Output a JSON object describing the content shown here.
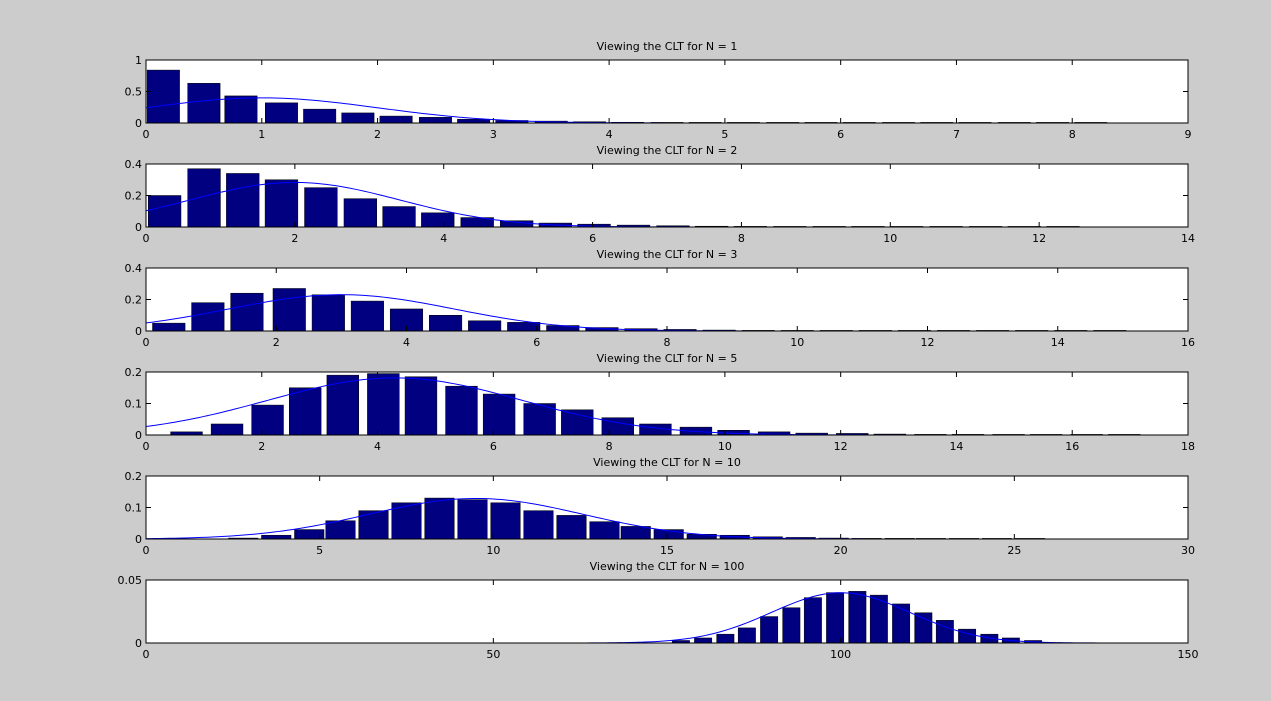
{
  "figure": {
    "background": "#cccccc",
    "bar_color": "#000080",
    "curve_color": "#0000ff"
  },
  "chart_data": [
    {
      "type": "bar",
      "title": "Viewing the CLT for N = 1",
      "xlabel": "",
      "ylabel": "",
      "xlim": [
        0,
        9
      ],
      "ylim": [
        0,
        1
      ],
      "xticks": [
        0,
        1,
        2,
        3,
        4,
        5,
        6,
        7,
        8,
        9
      ],
      "yticks": [
        0,
        0.5,
        1
      ],
      "grid": false,
      "bar_width": 0.28,
      "series": [
        {
          "kind": "histogram",
          "x": [
            0.15,
            0.5,
            0.82,
            1.17,
            1.5,
            1.83,
            2.16,
            2.5,
            2.83,
            3.16,
            3.5,
            3.83,
            4.16,
            4.5,
            4.83,
            5.16,
            5.5,
            5.83,
            6.16,
            6.5,
            6.83,
            7.16,
            7.5,
            7.83,
            8.16
          ],
          "values": [
            0.84,
            0.63,
            0.43,
            0.32,
            0.22,
            0.16,
            0.11,
            0.09,
            0.06,
            0.04,
            0.03,
            0.02,
            0.012,
            0.009,
            0.007,
            0.005,
            0.004,
            0.003,
            0.002,
            0.002,
            0.002,
            0.001,
            0.001,
            0.001,
            0.001
          ]
        },
        {
          "kind": "normal-curve",
          "mean": 1,
          "sd": 1,
          "scale": 1
        }
      ]
    },
    {
      "type": "bar",
      "title": "Viewing the CLT for N = 2",
      "xlabel": "",
      "ylabel": "",
      "xlim": [
        0,
        14
      ],
      "ylim": [
        0,
        0.4
      ],
      "xticks": [
        0,
        2,
        4,
        6,
        8,
        10,
        12,
        14
      ],
      "yticks": [
        0,
        0.2,
        0.4
      ],
      "grid": false,
      "bar_width": 0.44,
      "series": [
        {
          "kind": "histogram",
          "x": [
            0.25,
            0.78,
            1.3,
            1.82,
            2.35,
            2.88,
            3.4,
            3.92,
            4.45,
            4.98,
            5.5,
            6.02,
            6.55,
            7.08,
            7.6,
            8.12,
            8.65,
            9.18,
            9.7,
            10.22,
            10.75,
            11.28,
            11.8,
            12.32
          ],
          "values": [
            0.2,
            0.37,
            0.34,
            0.3,
            0.25,
            0.18,
            0.13,
            0.09,
            0.06,
            0.04,
            0.025,
            0.018,
            0.012,
            0.008,
            0.005,
            0.004,
            0.003,
            0.002,
            0.002,
            0.001,
            0.001,
            0.001,
            0.001,
            0.001
          ]
        },
        {
          "kind": "normal-curve",
          "mean": 2,
          "sd": 1.41,
          "scale": 1
        }
      ]
    },
    {
      "type": "bar",
      "title": "Viewing the CLT for N = 3",
      "xlabel": "",
      "ylabel": "",
      "xlim": [
        0,
        16
      ],
      "ylim": [
        0,
        0.4
      ],
      "xticks": [
        0,
        2,
        4,
        6,
        8,
        10,
        12,
        14,
        16
      ],
      "yticks": [
        0,
        0.2,
        0.4
      ],
      "grid": false,
      "bar_width": 0.5,
      "series": [
        {
          "kind": "histogram",
          "x": [
            0.35,
            0.95,
            1.55,
            2.2,
            2.8,
            3.4,
            4.0,
            4.6,
            5.2,
            5.8,
            6.4,
            7.0,
            7.6,
            8.2,
            8.8,
            9.4,
            10.0,
            10.6,
            11.2,
            11.8,
            12.4,
            13.0,
            13.6,
            14.2,
            14.8
          ],
          "values": [
            0.05,
            0.18,
            0.24,
            0.27,
            0.23,
            0.19,
            0.14,
            0.1,
            0.065,
            0.055,
            0.035,
            0.022,
            0.015,
            0.01,
            0.006,
            0.004,
            0.003,
            0.002,
            0.002,
            0.001,
            0.001,
            0.001,
            0.001,
            0.001,
            0.001
          ]
        },
        {
          "kind": "normal-curve",
          "mean": 3,
          "sd": 1.73,
          "scale": 1
        }
      ]
    },
    {
      "type": "bar",
      "title": "Viewing the CLT for N = 5",
      "xlabel": "",
      "ylabel": "",
      "xlim": [
        0,
        18
      ],
      "ylim": [
        0,
        0.2
      ],
      "xticks": [
        0,
        2,
        4,
        6,
        8,
        10,
        12,
        14,
        16,
        18
      ],
      "yticks": [
        0,
        0.1,
        0.2
      ],
      "grid": false,
      "bar_width": 0.55,
      "series": [
        {
          "kind": "histogram",
          "x": [
            0.7,
            1.4,
            2.1,
            2.75,
            3.4,
            4.1,
            4.75,
            5.45,
            6.1,
            6.8,
            7.45,
            8.15,
            8.8,
            9.5,
            10.15,
            10.85,
            11.5,
            12.2,
            12.85,
            13.55,
            14.2,
            14.9,
            15.55,
            16.25,
            16.9
          ],
          "values": [
            0.01,
            0.035,
            0.095,
            0.15,
            0.19,
            0.195,
            0.185,
            0.155,
            0.13,
            0.1,
            0.08,
            0.055,
            0.035,
            0.025,
            0.015,
            0.01,
            0.006,
            0.005,
            0.003,
            0.002,
            0.002,
            0.001,
            0.001,
            0.001,
            0.001
          ]
        },
        {
          "kind": "normal-curve",
          "mean": 4.3,
          "sd": 2.2,
          "scale": 1
        }
      ]
    },
    {
      "type": "bar",
      "title": "Viewing the CLT for N = 10",
      "xlabel": "",
      "ylabel": "",
      "xlim": [
        0,
        30
      ],
      "ylim": [
        0,
        0.2
      ],
      "xticks": [
        0,
        5,
        10,
        15,
        20,
        25,
        30
      ],
      "yticks": [
        0,
        0.1,
        0.2
      ],
      "grid": false,
      "bar_width": 0.85,
      "series": [
        {
          "kind": "histogram",
          "x": [
            2.8,
            3.75,
            4.7,
            5.6,
            6.55,
            7.5,
            8.45,
            9.4,
            10.35,
            11.3,
            12.25,
            13.2,
            14.1,
            15.05,
            16.0,
            16.95,
            17.9,
            18.85,
            19.8,
            20.75,
            21.7,
            22.6,
            23.55,
            24.5,
            25.45
          ],
          "values": [
            0.003,
            0.012,
            0.03,
            0.058,
            0.09,
            0.115,
            0.13,
            0.125,
            0.115,
            0.09,
            0.075,
            0.055,
            0.04,
            0.03,
            0.015,
            0.012,
            0.007,
            0.005,
            0.003,
            0.002,
            0.002,
            0.001,
            0.001,
            0.001,
            0.001
          ]
        },
        {
          "kind": "normal-curve",
          "mean": 9.5,
          "sd": 3.1,
          "scale": 1
        }
      ]
    },
    {
      "type": "bar",
      "title": "Viewing the CLT for N = 100",
      "xlabel": "",
      "ylabel": "",
      "xlim": [
        0,
        150
      ],
      "ylim": [
        0,
        0.05
      ],
      "xticks": [
        0,
        50,
        100,
        150
      ],
      "yticks": [
        0,
        0.05
      ],
      "grid": false,
      "bar_width": 2.5,
      "series": [
        {
          "kind": "histogram",
          "x": [
            77,
            80.2,
            83.4,
            86.5,
            89.7,
            92.9,
            96,
            99.2,
            102.4,
            105.5,
            108.7,
            111.9,
            115,
            118.2,
            121.4,
            124.5,
            127.7
          ],
          "values": [
            0.002,
            0.004,
            0.007,
            0.012,
            0.021,
            0.028,
            0.036,
            0.04,
            0.041,
            0.038,
            0.031,
            0.024,
            0.018,
            0.011,
            0.007,
            0.004,
            0.002
          ]
        },
        {
          "kind": "normal-curve",
          "mean": 100,
          "sd": 10,
          "scale": 1
        }
      ]
    }
  ]
}
